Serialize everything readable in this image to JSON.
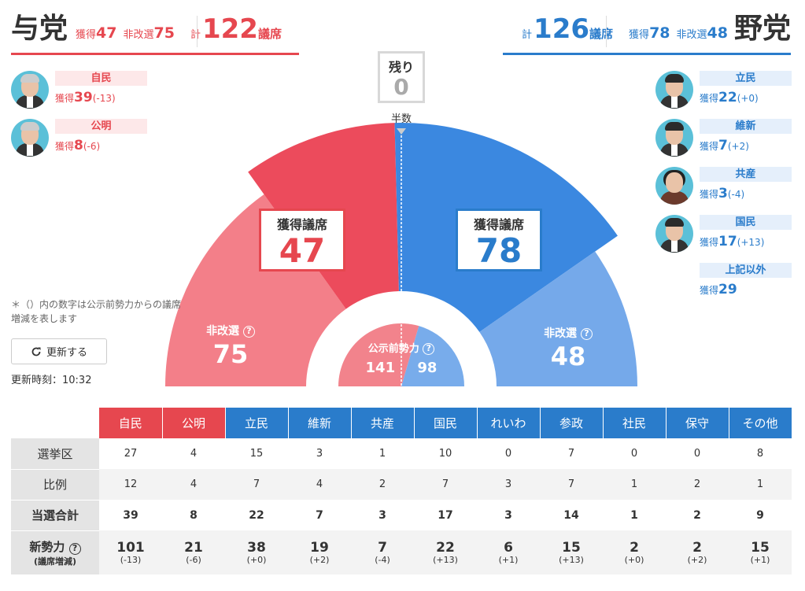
{
  "ruling": {
    "title": "与党",
    "won_label": "獲得",
    "won": "47",
    "nonre_label": "非改選",
    "nonre": "75",
    "total_label": "計",
    "total": "122",
    "seats_label": "議席",
    "color": "#e6474f",
    "parties": [
      {
        "name": "自民",
        "won_label": "獲得",
        "won": "39",
        "diff": "(-13)"
      },
      {
        "name": "公明",
        "won_label": "獲得",
        "won": "8",
        "diff": "(-6)"
      }
    ]
  },
  "opposition": {
    "title": "野党",
    "won_label": "獲得",
    "won": "78",
    "nonre_label": "非改選",
    "nonre": "48",
    "total_label": "計",
    "total": "126",
    "seats_label": "議席",
    "color": "#2a7ccb",
    "parties": [
      {
        "name": "立民",
        "won_label": "獲得",
        "won": "22",
        "diff": "(+0)"
      },
      {
        "name": "維新",
        "won_label": "獲得",
        "won": "7",
        "diff": "(+2)"
      },
      {
        "name": "共産",
        "won_label": "獲得",
        "won": "3",
        "diff": "(-4)"
      },
      {
        "name": "国民",
        "won_label": "獲得",
        "won": "17",
        "diff": "(+13)"
      },
      {
        "name": "上記以外",
        "won_label": "獲得",
        "won": "29",
        "diff": ""
      }
    ]
  },
  "remaining": {
    "label": "残り",
    "value": "0"
  },
  "half_label": "半数",
  "gauge": {
    "won_box_label": "獲得議席",
    "nonre_label": "非改選",
    "prior_label": "公示前勢力",
    "prior_ruling": "141",
    "prior_opposition": "98",
    "colors": {
      "ruling_won": "#ec4b5c",
      "ruling_nonre": "#f37f89",
      "opp_won": "#3b88e0",
      "opp_nonre": "#75a9ea",
      "prior_ruling": "#f2838c",
      "prior_opp": "#78aceb"
    }
  },
  "note": "＊（）内の数字は公示前勢力からの議席増減を表します",
  "refresh_label": "更新する",
  "updated": "更新時刻：10:32",
  "table": {
    "headers": [
      "自民",
      "公明",
      "立民",
      "維新",
      "共産",
      "国民",
      "れいわ",
      "参政",
      "社民",
      "保守",
      "その他"
    ],
    "header_colors": [
      "#e6474f",
      "#e6474f",
      "#2a7ccb",
      "#2a7ccb",
      "#2a7ccb",
      "#2a7ccb",
      "#2a7ccb",
      "#2a7ccb",
      "#2a7ccb",
      "#2a7ccb",
      "#2a7ccb"
    ],
    "row_labels": [
      "選挙区",
      "比例",
      "当選合計",
      "新勢力"
    ],
    "new_sub": "(議席増減)",
    "district": [
      "27",
      "4",
      "15",
      "3",
      "1",
      "10",
      "0",
      "7",
      "0",
      "0",
      "8"
    ],
    "pr": [
      "12",
      "4",
      "7",
      "4",
      "2",
      "7",
      "3",
      "7",
      "1",
      "2",
      "1"
    ],
    "total": [
      "39",
      "8",
      "22",
      "7",
      "3",
      "17",
      "3",
      "14",
      "1",
      "2",
      "9"
    ],
    "new_power": [
      "101",
      "21",
      "38",
      "19",
      "7",
      "22",
      "6",
      "15",
      "2",
      "2",
      "15"
    ],
    "new_diff": [
      "(-13)",
      "(-6)",
      "(+0)",
      "(+2)",
      "(-4)",
      "(+13)",
      "(+1)",
      "(+13)",
      "(+0)",
      "(+2)",
      "(+1)"
    ]
  }
}
